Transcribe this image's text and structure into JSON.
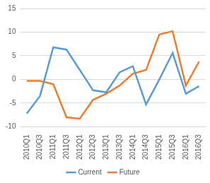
{
  "chart_data": {
    "type": "line",
    "categories": [
      "2010Q1",
      "2010Q3",
      "2011Q1",
      "2011Q3",
      "2012Q1",
      "2012Q3",
      "2013Q1",
      "2013Q3",
      "2014Q1",
      "2014Q3",
      "2015Q1",
      "2015Q3",
      "2016Q1",
      "2016Q3"
    ],
    "series": [
      {
        "name": "Current",
        "color": "#5b9bd5",
        "values": [
          -7.2,
          -3.5,
          6.8,
          6.3,
          2,
          -2.3,
          -2.7,
          1.5,
          2.8,
          -5.3,
          0,
          5.6,
          -3,
          -1.4
        ]
      },
      {
        "name": "Future",
        "color": "#ed7d31",
        "values": [
          -0.3,
          -0.3,
          -1,
          -8,
          -8.3,
          -4.3,
          -3,
          -1.3,
          1.2,
          2,
          9.5,
          10.2,
          -1.3,
          3.8
        ]
      }
    ],
    "ylim": [
      -10,
      15
    ],
    "yticks": [
      -10,
      -5,
      0,
      5,
      10,
      15
    ],
    "grid": true,
    "legend": "bottom"
  }
}
